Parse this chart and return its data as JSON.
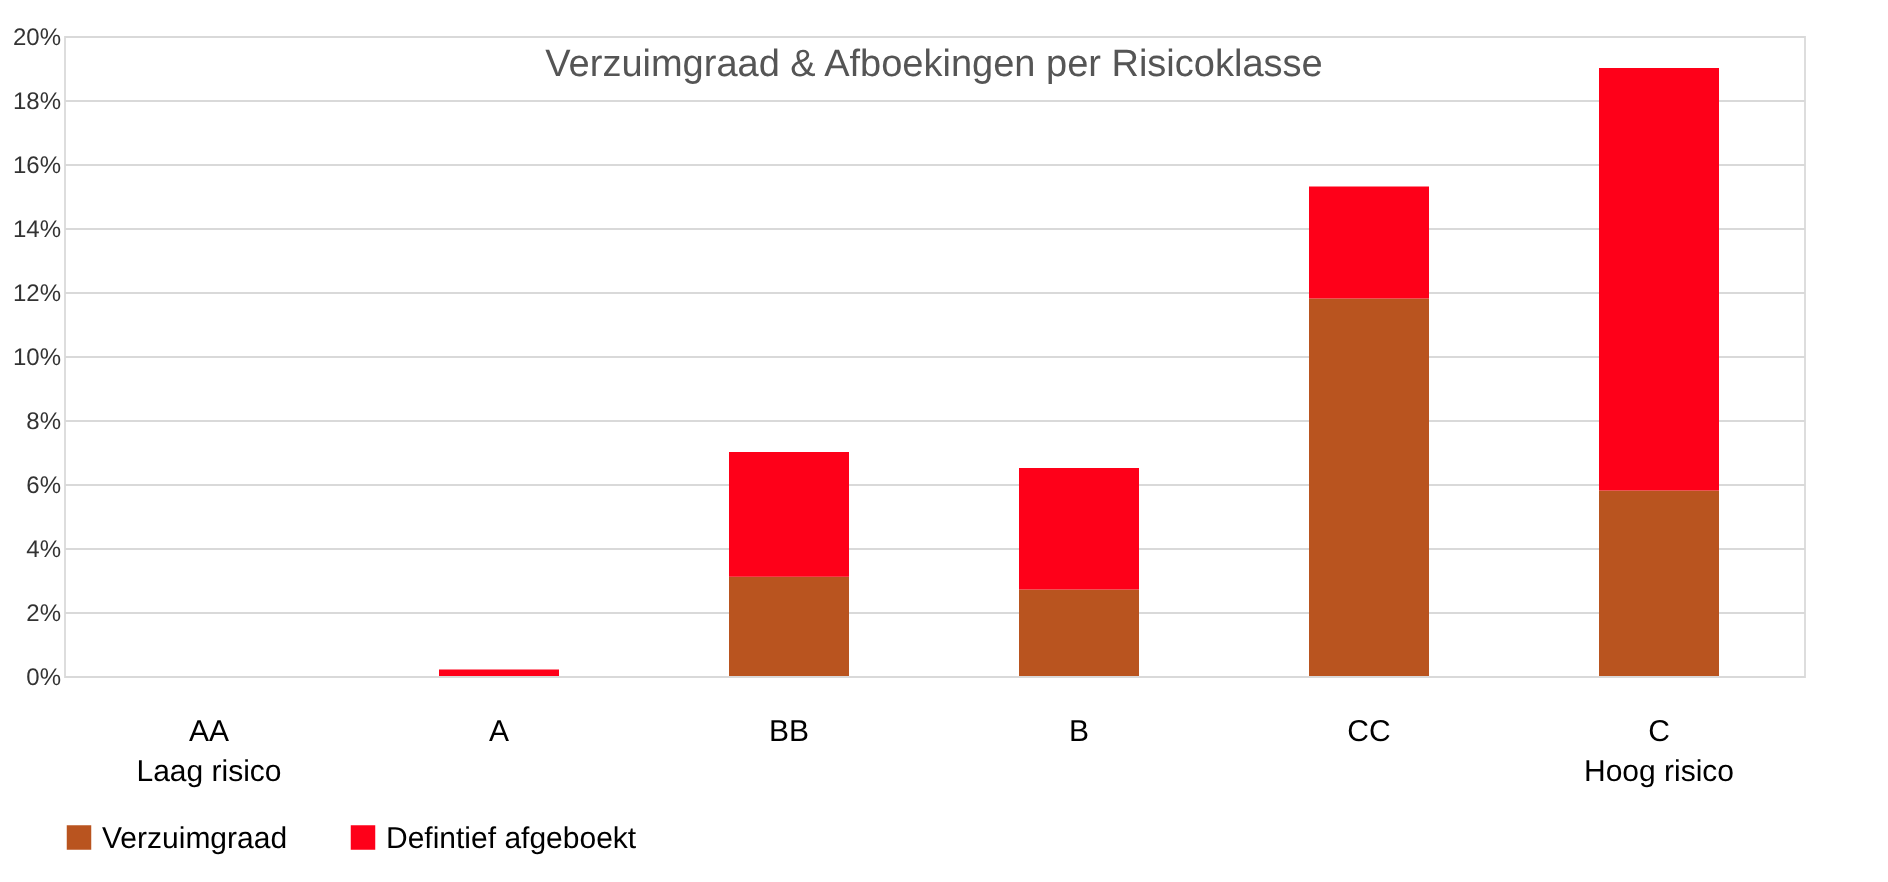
{
  "chart_data": {
    "type": "bar",
    "title": "Verzuimgraad & Afboekingen per Risicoklasse",
    "stacked": true,
    "categories": [
      "AA\nLaag risico",
      "A",
      "BB",
      "B",
      "CC",
      "C\nHoog risico"
    ],
    "series": [
      {
        "name": "Verzuimgraad",
        "color": "#b9541f",
        "values": [
          0,
          0,
          3.1,
          2.7,
          11.8,
          5.8
        ]
      },
      {
        "name": "Defintief afgeboekt",
        "color": "#fe0019",
        "values": [
          0,
          0.2,
          3.9,
          3.8,
          3.5,
          13.2
        ]
      }
    ],
    "ylim": [
      0,
      20
    ],
    "yticks": [
      {
        "value": 0,
        "label": "0%"
      },
      {
        "value": 2,
        "label": "2%"
      },
      {
        "value": 4,
        "label": "4%"
      },
      {
        "value": 6,
        "label": "6%"
      },
      {
        "value": 8,
        "label": "8%"
      },
      {
        "value": 10,
        "label": "10%"
      },
      {
        "value": 12,
        "label": "12%"
      },
      {
        "value": 14,
        "label": "14%"
      },
      {
        "value": 16,
        "label": "16%"
      },
      {
        "value": 18,
        "label": "18%"
      },
      {
        "value": 20,
        "label": "20%"
      }
    ],
    "grid": "y",
    "legend": "bottom"
  }
}
